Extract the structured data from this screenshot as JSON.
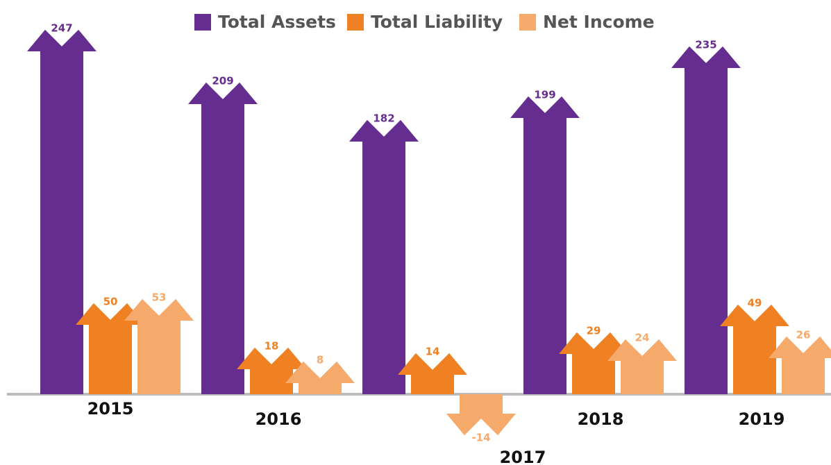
{
  "chart_data": {
    "type": "arrow-bar",
    "categories": [
      "2015",
      "2016",
      "2017",
      "2018",
      "2019"
    ],
    "series": [
      {
        "name": "Total Assets",
        "color": "#652d8f",
        "values": [
          247,
          209,
          182,
          199,
          235
        ]
      },
      {
        "name": "Total Liability",
        "color": "#ef8122",
        "values": [
          50,
          18,
          14,
          29,
          49
        ]
      },
      {
        "name": "Net Income",
        "color": "#f5a96b",
        "values": [
          53,
          8,
          -14,
          24,
          26
        ]
      }
    ]
  }
}
